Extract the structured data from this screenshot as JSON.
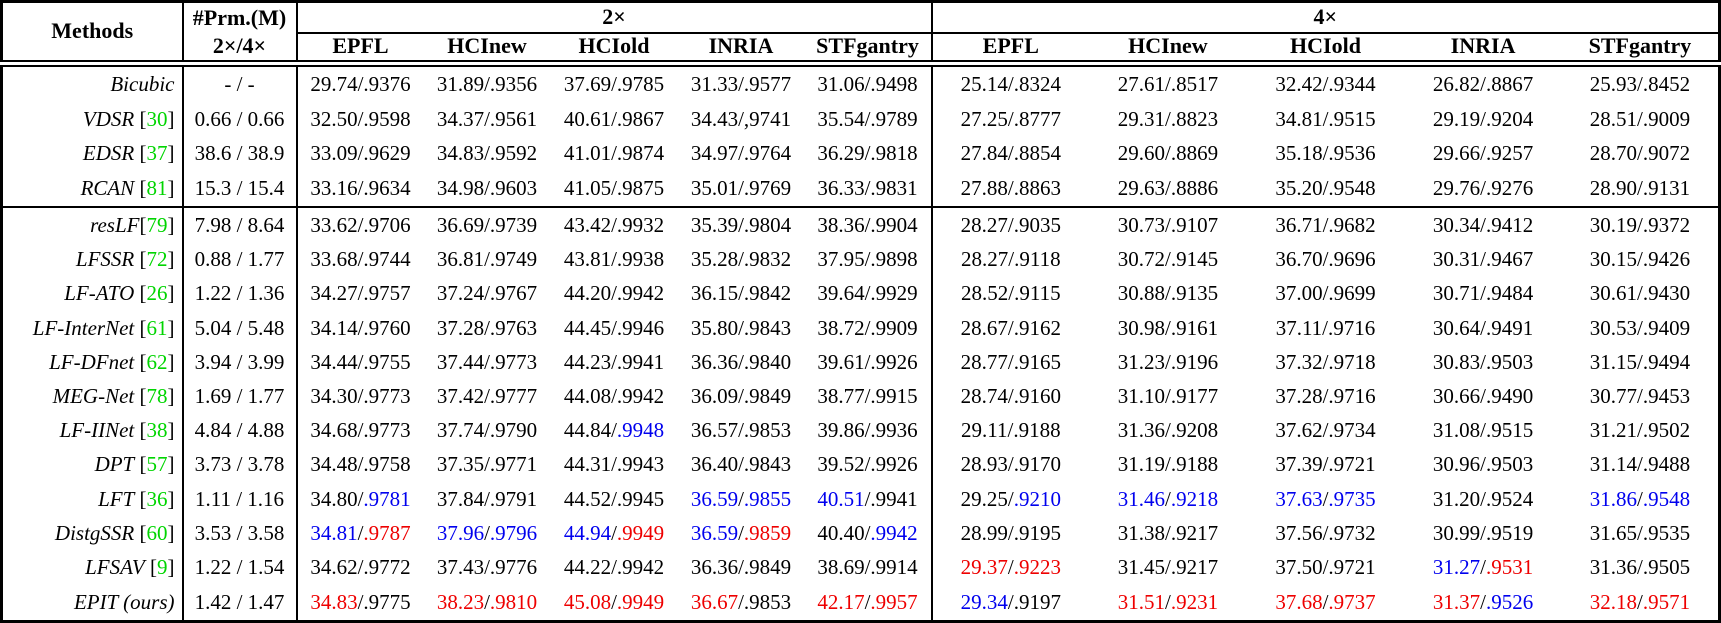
{
  "table": {
    "colors": {
      "red": "#ee0000",
      "blue": "#0000ee",
      "ref_green": "#00d500",
      "text": "#000000"
    },
    "header": {
      "methods_label": "Methods",
      "prm_line1": "#Prm.(M)",
      "prm_line2": "2×/4×",
      "scale_2x": "2×",
      "scale_4x": "4×",
      "datasets": [
        "EPFL",
        "HCInew",
        "HCIold",
        "INRIA",
        "STFgantry"
      ]
    },
    "groups": [
      {
        "rows": [
          {
            "name": "Bicubic",
            "ref": null,
            "prm": "- / -",
            "cells": [
              [
                "29.74/.9376",
                "kk"
              ],
              [
                "31.89/.9356",
                "kk"
              ],
              [
                "37.69/.9785",
                "kk"
              ],
              [
                "31.33/.9577",
                "kk"
              ],
              [
                "31.06/.9498",
                "kk"
              ],
              [
                "25.14/.8324",
                "kk"
              ],
              [
                "27.61/.8517",
                "kk"
              ],
              [
                "32.42/.9344",
                "kk"
              ],
              [
                "26.82/.8867",
                "kk"
              ],
              [
                "25.93/.8452",
                "kk"
              ]
            ]
          },
          {
            "name": "VDSR",
            "ref": "30",
            "prm": "0.66 / 0.66",
            "cells": [
              [
                "32.50/.9598",
                "kk"
              ],
              [
                "34.37/.9561",
                "kk"
              ],
              [
                "40.61/.9867",
                "kk"
              ],
              [
                "34.43/,9741",
                "kk"
              ],
              [
                "35.54/.9789",
                "kk"
              ],
              [
                "27.25/.8777",
                "kk"
              ],
              [
                "29.31/.8823",
                "kk"
              ],
              [
                "34.81/.9515",
                "kk"
              ],
              [
                "29.19/.9204",
                "kk"
              ],
              [
                "28.51/.9009",
                "kk"
              ]
            ]
          },
          {
            "name": "EDSR",
            "ref": "37",
            "prm": "38.6 / 38.9",
            "cells": [
              [
                "33.09/.9629",
                "kk"
              ],
              [
                "34.83/.9592",
                "kk"
              ],
              [
                "41.01/.9874",
                "kk"
              ],
              [
                "34.97/.9764",
                "kk"
              ],
              [
                "36.29/.9818",
                "kk"
              ],
              [
                "27.84/.8854",
                "kk"
              ],
              [
                "29.60/.8869",
                "kk"
              ],
              [
                "35.18/.9536",
                "kk"
              ],
              [
                "29.66/.9257",
                "kk"
              ],
              [
                "28.70/.9072",
                "kk"
              ]
            ]
          },
          {
            "name": "RCAN",
            "ref": "81",
            "prm": "15.3 / 15.4",
            "cells": [
              [
                "33.16/.9634",
                "kk"
              ],
              [
                "34.98/.9603",
                "kk"
              ],
              [
                "41.05/.9875",
                "kk"
              ],
              [
                "35.01/.9769",
                "kk"
              ],
              [
                "36.33/.9831",
                "kk"
              ],
              [
                "27.88/.8863",
                "kk"
              ],
              [
                "29.63/.8886",
                "kk"
              ],
              [
                "35.20/.9548",
                "kk"
              ],
              [
                "29.76/.9276",
                "kk"
              ],
              [
                "28.90/.9131",
                "kk"
              ]
            ]
          }
        ]
      },
      {
        "rows": [
          {
            "name": "resLF",
            "ref": "79",
            "tight": true,
            "prm": "7.98 / 8.64",
            "cells": [
              [
                "33.62/.9706",
                "kk"
              ],
              [
                "36.69/.9739",
                "kk"
              ],
              [
                "43.42/.9932",
                "kk"
              ],
              [
                "35.39/.9804",
                "kk"
              ],
              [
                "38.36/.9904",
                "kk"
              ],
              [
                "28.27/.9035",
                "kk"
              ],
              [
                "30.73/.9107",
                "kk"
              ],
              [
                "36.71/.9682",
                "kk"
              ],
              [
                "30.34/.9412",
                "kk"
              ],
              [
                "30.19/.9372",
                "kk"
              ]
            ]
          },
          {
            "name": "LFSSR",
            "ref": "72",
            "prm": "0.88 / 1.77",
            "cells": [
              [
                "33.68/.9744",
                "kk"
              ],
              [
                "36.81/.9749",
                "kk"
              ],
              [
                "43.81/.9938",
                "kk"
              ],
              [
                "35.28/.9832",
                "kk"
              ],
              [
                "37.95/.9898",
                "kk"
              ],
              [
                "28.27/.9118",
                "kk"
              ],
              [
                "30.72/.9145",
                "kk"
              ],
              [
                "36.70/.9696",
                "kk"
              ],
              [
                "30.31/.9467",
                "kk"
              ],
              [
                "30.15/.9426",
                "kk"
              ]
            ]
          },
          {
            "name": "LF-ATO",
            "ref": "26",
            "prm": "1.22 / 1.36",
            "cells": [
              [
                "34.27/.9757",
                "kk"
              ],
              [
                "37.24/.9767",
                "kk"
              ],
              [
                "44.20/.9942",
                "kk"
              ],
              [
                "36.15/.9842",
                "kk"
              ],
              [
                "39.64/.9929",
                "kk"
              ],
              [
                "28.52/.9115",
                "kk"
              ],
              [
                "30.88/.9135",
                "kk"
              ],
              [
                "37.00/.9699",
                "kk"
              ],
              [
                "30.71/.9484",
                "kk"
              ],
              [
                "30.61/.9430",
                "kk"
              ]
            ]
          },
          {
            "name": "LF-InterNet",
            "ref": "61",
            "prm": "5.04 / 5.48",
            "cells": [
              [
                "34.14/.9760",
                "kk"
              ],
              [
                "37.28/.9763",
                "kk"
              ],
              [
                "44.45/.9946",
                "kk"
              ],
              [
                "35.80/.9843",
                "kk"
              ],
              [
                "38.72/.9909",
                "kk"
              ],
              [
                "28.67/.9162",
                "kk"
              ],
              [
                "30.98/.9161",
                "kk"
              ],
              [
                "37.11/.9716",
                "kk"
              ],
              [
                "30.64/.9491",
                "kk"
              ],
              [
                "30.53/.9409",
                "kk"
              ]
            ]
          },
          {
            "name": "LF-DFnet",
            "ref": "62",
            "prm": "3.94 / 3.99",
            "cells": [
              [
                "34.44/.9755",
                "kk"
              ],
              [
                "37.44/.9773",
                "kk"
              ],
              [
                "44.23/.9941",
                "kk"
              ],
              [
                "36.36/.9840",
                "kk"
              ],
              [
                "39.61/.9926",
                "kk"
              ],
              [
                "28.77/.9165",
                "kk"
              ],
              [
                "31.23/.9196",
                "kk"
              ],
              [
                "37.32/.9718",
                "kk"
              ],
              [
                "30.83/.9503",
                "kk"
              ],
              [
                "31.15/.9494",
                "kk"
              ]
            ]
          },
          {
            "name": "MEG-Net",
            "ref": "78",
            "prm": "1.69 / 1.77",
            "cells": [
              [
                "34.30/.9773",
                "kk"
              ],
              [
                "37.42/.9777",
                "kk"
              ],
              [
                "44.08/.9942",
                "kk"
              ],
              [
                "36.09/.9849",
                "kk"
              ],
              [
                "38.77/.9915",
                "kk"
              ],
              [
                "28.74/.9160",
                "kk"
              ],
              [
                "31.10/.9177",
                "kk"
              ],
              [
                "37.28/.9716",
                "kk"
              ],
              [
                "30.66/.9490",
                "kk"
              ],
              [
                "30.77/.9453",
                "kk"
              ]
            ]
          },
          {
            "name": "LF-IINet",
            "ref": "38",
            "prm": "4.84 / 4.88",
            "cells": [
              [
                "34.68/.9773",
                "kk"
              ],
              [
                "37.74/.9790",
                "kk"
              ],
              [
                "44.84/.9948",
                "kb"
              ],
              [
                "36.57/.9853",
                "kk"
              ],
              [
                "39.86/.9936",
                "kk"
              ],
              [
                "29.11/.9188",
                "kk"
              ],
              [
                "31.36/.9208",
                "kk"
              ],
              [
                "37.62/.9734",
                "kk"
              ],
              [
                "31.08/.9515",
                "kk"
              ],
              [
                "31.21/.9502",
                "kk"
              ]
            ]
          },
          {
            "name": "DPT",
            "ref": "57",
            "prm": "3.73 / 3.78",
            "cells": [
              [
                "34.48/.9758",
                "kk"
              ],
              [
                "37.35/.9771",
                "kk"
              ],
              [
                "44.31/.9943",
                "kk"
              ],
              [
                "36.40/.9843",
                "kk"
              ],
              [
                "39.52/.9926",
                "kk"
              ],
              [
                "28.93/.9170",
                "kk"
              ],
              [
                "31.19/.9188",
                "kk"
              ],
              [
                "37.39/.9721",
                "kk"
              ],
              [
                "30.96/.9503",
                "kk"
              ],
              [
                "31.14/.9488",
                "kk"
              ]
            ]
          },
          {
            "name": "LFT",
            "ref": "36",
            "prm": "1.11 / 1.16",
            "cells": [
              [
                "34.80/.9781",
                "kb"
              ],
              [
                "37.84/.9791",
                "kk"
              ],
              [
                "44.52/.9945",
                "kk"
              ],
              [
                "36.59/.9855",
                "bb"
              ],
              [
                "40.51/.9941",
                "bk"
              ],
              [
                "29.25/.9210",
                "kb"
              ],
              [
                "31.46/.9218",
                "bb"
              ],
              [
                "37.63/.9735",
                "bb"
              ],
              [
                "31.20/.9524",
                "kk"
              ],
              [
                "31.86/.9548",
                "bb"
              ]
            ]
          },
          {
            "name": "DistgSSR",
            "ref": "60",
            "prm": "3.53 / 3.58",
            "cells": [
              [
                "34.81/.9787",
                "br"
              ],
              [
                "37.96/.9796",
                "bb"
              ],
              [
                "44.94/.9949",
                "br"
              ],
              [
                "36.59/.9859",
                "br"
              ],
              [
                "40.40/.9942",
                "kb"
              ],
              [
                "28.99/.9195",
                "kk"
              ],
              [
                "31.38/.9217",
                "kk"
              ],
              [
                "37.56/.9732",
                "kk"
              ],
              [
                "30.99/.9519",
                "kk"
              ],
              [
                "31.65/.9535",
                "kk"
              ]
            ]
          },
          {
            "name": "LFSAV",
            "ref": "9",
            "prm": "1.22 / 1.54",
            "cells": [
              [
                "34.62/.9772",
                "kk"
              ],
              [
                "37.43/.9776",
                "kk"
              ],
              [
                "44.22/.9942",
                "kk"
              ],
              [
                "36.36/.9849",
                "kk"
              ],
              [
                "38.69/.9914",
                "kk"
              ],
              [
                "29.37/.9223",
                "rr"
              ],
              [
                "31.45/.9217",
                "kk"
              ],
              [
                "37.50/.9721",
                "kk"
              ],
              [
                "31.27/.9531",
                "br"
              ],
              [
                "31.36/.9505",
                "kk"
              ]
            ]
          },
          {
            "name": "EPIT (ours)",
            "ref": null,
            "prm": "1.42 / 1.47",
            "cells": [
              [
                "34.83/.9775",
                "rk"
              ],
              [
                "38.23/.9810",
                "rr"
              ],
              [
                "45.08/.9949",
                "rr"
              ],
              [
                "36.67/.9853",
                "rk"
              ],
              [
                "42.17/.9957",
                "rr"
              ],
              [
                "29.34/.9197",
                "bk"
              ],
              [
                "31.51/.9231",
                "rr"
              ],
              [
                "37.68/.9737",
                "rr"
              ],
              [
                "31.37/.9526",
                "rb"
              ],
              [
                "32.18/.9571",
                "rr"
              ]
            ]
          }
        ]
      }
    ]
  }
}
